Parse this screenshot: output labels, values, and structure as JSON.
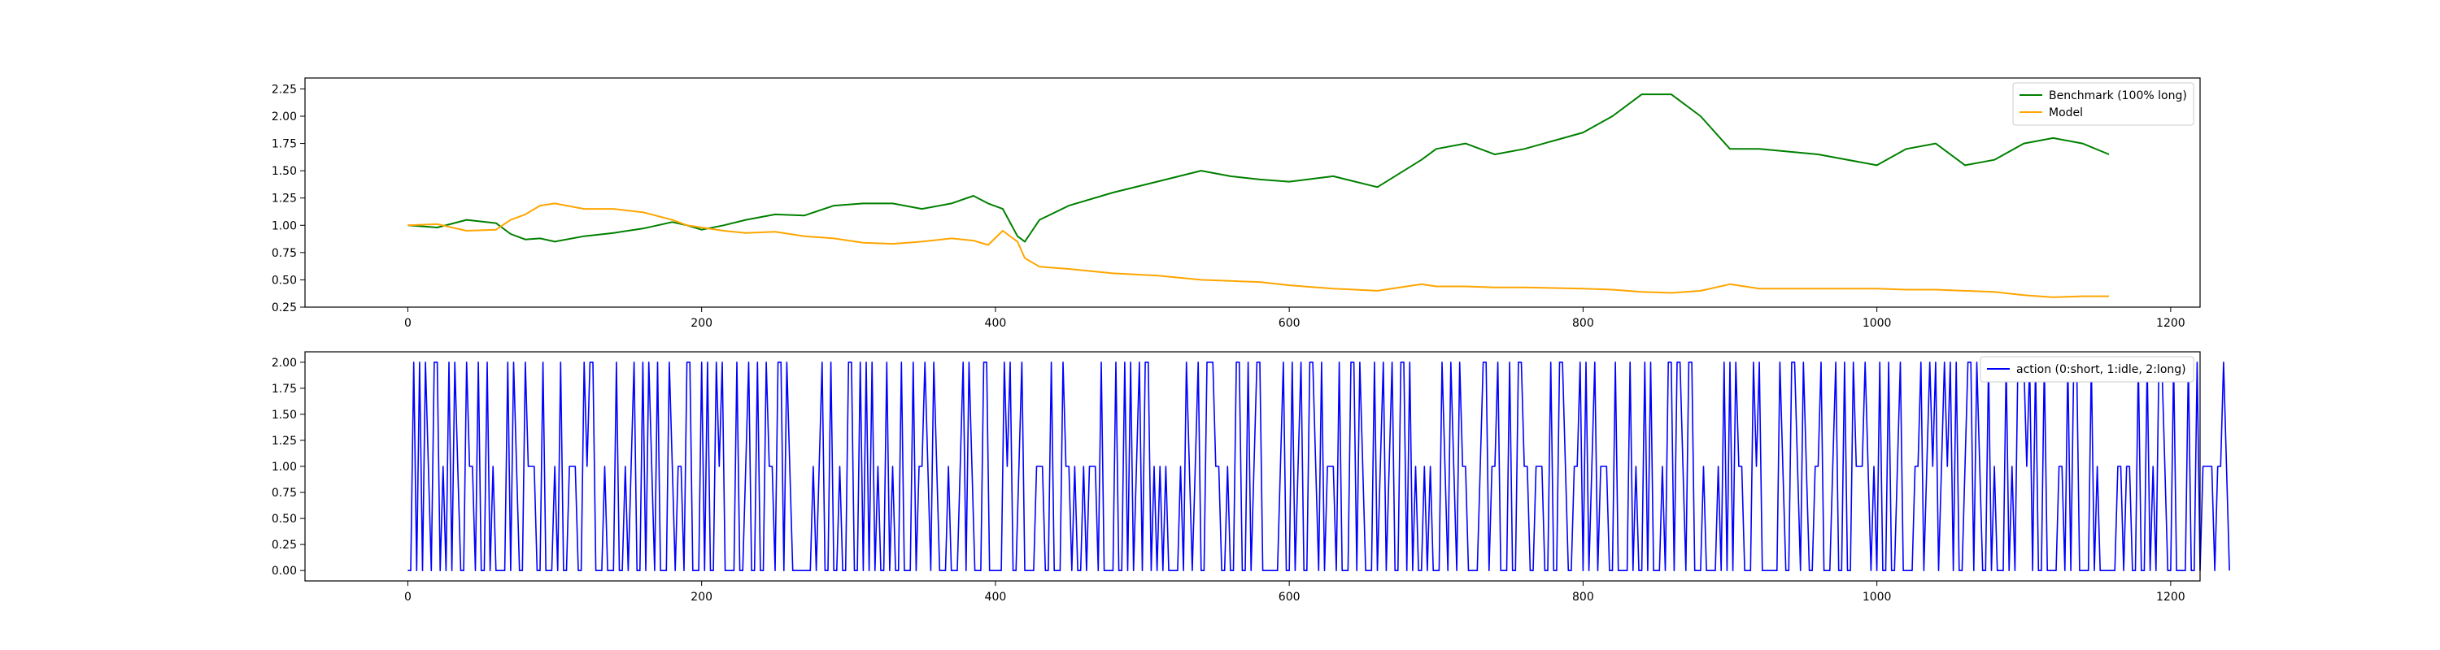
{
  "chart_data": [
    {
      "type": "line",
      "xlim": [
        -70,
        1220
      ],
      "ylim": [
        0.25,
        2.35
      ],
      "xticks": [
        0,
        200,
        400,
        600,
        800,
        1000,
        1200
      ],
      "yticks": [
        0.25,
        0.5,
        0.75,
        1.0,
        1.25,
        1.5,
        1.75,
        2.0,
        2.25
      ],
      "ytick_labels": [
        "0.25",
        "0.50",
        "0.75",
        "1.00",
        "1.25",
        "1.50",
        "1.75",
        "2.00",
        "2.25"
      ],
      "grid": false,
      "legend_position": "top-right",
      "series": [
        {
          "name": "Benchmark (100% long)",
          "color": "#008000",
          "x": [
            0,
            20,
            40,
            60,
            70,
            80,
            90,
            100,
            120,
            140,
            160,
            180,
            190,
            200,
            215,
            230,
            250,
            270,
            290,
            310,
            330,
            350,
            370,
            385,
            395,
            405,
            415,
            420,
            430,
            450,
            480,
            510,
            540,
            560,
            580,
            600,
            630,
            660,
            690,
            700,
            720,
            740,
            760,
            800,
            820,
            840,
            860,
            880,
            900,
            920,
            960,
            1000,
            1020,
            1040,
            1060,
            1080,
            1100,
            1120,
            1140,
            1158
          ],
          "y": [
            1.0,
            0.98,
            1.05,
            1.02,
            0.92,
            0.87,
            0.88,
            0.85,
            0.9,
            0.93,
            0.97,
            1.03,
            1.0,
            0.96,
            1.0,
            1.05,
            1.1,
            1.09,
            1.18,
            1.2,
            1.2,
            1.15,
            1.2,
            1.27,
            1.2,
            1.15,
            0.9,
            0.85,
            1.05,
            1.18,
            1.3,
            1.4,
            1.5,
            1.45,
            1.42,
            1.4,
            1.45,
            1.35,
            1.6,
            1.7,
            1.75,
            1.65,
            1.7,
            1.85,
            2.0,
            2.2,
            2.2,
            2.0,
            1.7,
            1.7,
            1.65,
            1.55,
            1.7,
            1.75,
            1.55,
            1.6,
            1.75,
            1.8,
            1.75,
            1.65
          ]
        },
        {
          "name": "Model",
          "color": "#ffa500",
          "x": [
            0,
            20,
            40,
            60,
            70,
            80,
            90,
            100,
            120,
            140,
            160,
            180,
            190,
            200,
            215,
            230,
            250,
            270,
            290,
            310,
            330,
            350,
            370,
            385,
            395,
            405,
            415,
            420,
            430,
            450,
            480,
            510,
            540,
            560,
            580,
            600,
            630,
            660,
            690,
            700,
            720,
            740,
            760,
            800,
            820,
            840,
            860,
            880,
            900,
            920,
            960,
            1000,
            1020,
            1040,
            1060,
            1080,
            1100,
            1120,
            1140,
            1158
          ],
          "y": [
            1.0,
            1.01,
            0.95,
            0.96,
            1.05,
            1.1,
            1.18,
            1.2,
            1.15,
            1.15,
            1.12,
            1.05,
            1.0,
            0.98,
            0.95,
            0.93,
            0.94,
            0.9,
            0.88,
            0.84,
            0.83,
            0.85,
            0.88,
            0.86,
            0.82,
            0.95,
            0.85,
            0.7,
            0.62,
            0.6,
            0.56,
            0.54,
            0.5,
            0.49,
            0.48,
            0.45,
            0.42,
            0.4,
            0.46,
            0.44,
            0.44,
            0.43,
            0.43,
            0.42,
            0.41,
            0.39,
            0.38,
            0.4,
            0.46,
            0.42,
            0.42,
            0.42,
            0.41,
            0.41,
            0.4,
            0.39,
            0.36,
            0.34,
            0.35,
            0.35
          ]
        }
      ]
    },
    {
      "type": "line",
      "xlim": [
        -70,
        1220
      ],
      "ylim": [
        -0.1,
        2.1
      ],
      "xticks": [
        0,
        200,
        400,
        600,
        800,
        1000,
        1200
      ],
      "yticks": [
        0.0,
        0.25,
        0.5,
        0.75,
        1.0,
        1.25,
        1.5,
        1.75,
        2.0
      ],
      "ytick_labels": [
        "0.00",
        "0.25",
        "0.50",
        "0.75",
        "1.00",
        "1.25",
        "1.50",
        "1.75",
        "2.00"
      ],
      "grid": false,
      "legend_position": "top-right",
      "series": [
        {
          "name": "action (0:short, 1:idle, 2:long)",
          "color": "#0000ff",
          "x_start": 0,
          "x_step": 2,
          "values": [
            0,
            0,
            2,
            0,
            2,
            0,
            2,
            1,
            0,
            2,
            2,
            0,
            1,
            0,
            2,
            0,
            2,
            1,
            0,
            0,
            2,
            1,
            1,
            0,
            2,
            0,
            0,
            2,
            0,
            1,
            0,
            0,
            0,
            0,
            2,
            0,
            2,
            1,
            0,
            0,
            2,
            1,
            1,
            1,
            0,
            0,
            2,
            0,
            0,
            0,
            1,
            0,
            2,
            0,
            0,
            1,
            1,
            1,
            0,
            0,
            2,
            1,
            2,
            2,
            0,
            0,
            0,
            1,
            0,
            0,
            0,
            2,
            0,
            0,
            1,
            0,
            1,
            2,
            0,
            0,
            2,
            0,
            2,
            1,
            0,
            2,
            0,
            0,
            0,
            2,
            1,
            0,
            1,
            1,
            0,
            2,
            2,
            0,
            0,
            0,
            2,
            0,
            2,
            0,
            0,
            2,
            1,
            2,
            0,
            0,
            0,
            0,
            2,
            0,
            0,
            1,
            2,
            0,
            0,
            2,
            0,
            0,
            2,
            1,
            1,
            0,
            2,
            2,
            0,
            2,
            1,
            0,
            0,
            0,
            0,
            0,
            0,
            0,
            1,
            0,
            1,
            2,
            0,
            0,
            2,
            0,
            0,
            1,
            0,
            0,
            2,
            2,
            0,
            0,
            2,
            0,
            2,
            0,
            2,
            0,
            1,
            0,
            0,
            2,
            0,
            1,
            0,
            0,
            2,
            0,
            0,
            0,
            2,
            0,
            1,
            1,
            2,
            1,
            0,
            2,
            1,
            0,
            0,
            0,
            1,
            0,
            0,
            0,
            1,
            2,
            0,
            2,
            1,
            0,
            0,
            0,
            2,
            2,
            0,
            0,
            0,
            0,
            0,
            2,
            1,
            2,
            0,
            0,
            1,
            2,
            0,
            0,
            0,
            0,
            1,
            1,
            1,
            0,
            0,
            2,
            0,
            0,
            0,
            2,
            1,
            1,
            0,
            1,
            0,
            0,
            1,
            0,
            1,
            1,
            1,
            0,
            2,
            0,
            0,
            0,
            0,
            2,
            0,
            0,
            2,
            0,
            2,
            0,
            1,
            2,
            0,
            2,
            2,
            0,
            1,
            0,
            1,
            0,
            1,
            0,
            0,
            0,
            0,
            1,
            0,
            2,
            1,
            0,
            1,
            2,
            0,
            0,
            2,
            2,
            2,
            1,
            1,
            0,
            0,
            1,
            0,
            0,
            2,
            2,
            0,
            0,
            2,
            0,
            1,
            2,
            2,
            0,
            0,
            0,
            0,
            0,
            0,
            1,
            2,
            0,
            0,
            2,
            0,
            1,
            2,
            0,
            0,
            2,
            2,
            1,
            0,
            2,
            0,
            1,
            1,
            1,
            0,
            2,
            0,
            0,
            0,
            2,
            2,
            0,
            2,
            1,
            0,
            0,
            0,
            2,
            0,
            1,
            2,
            0,
            1,
            2,
            0,
            0,
            2,
            2,
            0,
            2,
            0,
            1,
            0,
            0,
            1,
            0,
            1,
            0,
            0,
            0,
            2,
            1,
            0,
            2,
            1,
            0,
            2,
            1,
            1,
            0,
            0,
            0,
            0,
            1,
            2,
            2,
            0,
            1,
            1,
            2,
            0,
            0,
            0,
            2,
            0,
            0,
            2,
            2,
            1,
            1,
            0,
            0,
            1,
            1,
            1,
            0,
            0,
            2,
            0,
            0,
            2,
            2,
            1,
            0,
            0,
            1,
            1,
            2,
            0,
            2,
            0,
            1,
            2,
            0,
            1,
            1,
            1,
            0,
            0,
            2,
            0,
            0,
            0,
            0,
            2,
            0,
            1,
            0,
            0,
            2,
            0,
            2,
            0,
            0,
            0,
            1,
            0,
            2,
            2,
            0,
            2,
            2,
            1,
            0,
            2,
            2,
            0,
            0,
            0,
            1,
            0,
            0,
            0,
            0,
            1,
            0,
            2,
            0,
            2,
            0,
            2,
            1,
            1,
            0,
            0,
            0,
            2,
            1,
            2,
            0,
            0,
            0,
            0,
            0,
            0,
            2,
            1,
            0,
            0,
            2,
            2,
            1,
            0,
            2,
            1,
            0,
            0,
            1,
            1,
            2,
            0,
            0,
            0,
            1,
            2,
            0,
            0,
            2,
            0,
            0,
            2,
            1,
            1,
            1,
            2,
            1,
            0,
            1,
            0,
            2,
            0,
            0,
            2,
            0,
            0,
            1,
            2,
            0,
            0,
            0,
            0,
            1,
            1,
            2,
            0,
            1,
            2,
            1,
            2,
            0,
            1,
            2,
            1,
            2,
            0,
            2,
            0,
            0,
            1,
            2,
            2,
            0,
            2,
            1,
            0,
            0,
            2,
            0,
            1,
            0,
            0,
            0,
            2,
            0,
            1,
            0,
            2,
            2,
            2,
            1,
            2,
            0,
            2,
            0,
            0,
            2,
            0,
            0,
            0,
            0,
            1,
            1,
            0,
            2,
            0,
            2,
            2,
            0,
            0,
            0,
            0,
            2,
            0,
            1,
            0,
            0,
            0,
            0,
            0,
            0,
            1,
            1,
            0,
            1,
            1,
            0,
            0,
            2,
            0,
            0,
            2,
            0,
            1,
            0,
            2,
            2,
            1,
            0,
            0,
            2,
            0,
            0,
            0,
            0,
            2,
            0,
            0,
            2,
            0,
            1,
            1,
            1,
            1,
            0,
            1,
            1,
            2,
            1,
            0
          ]
        }
      ]
    }
  ]
}
